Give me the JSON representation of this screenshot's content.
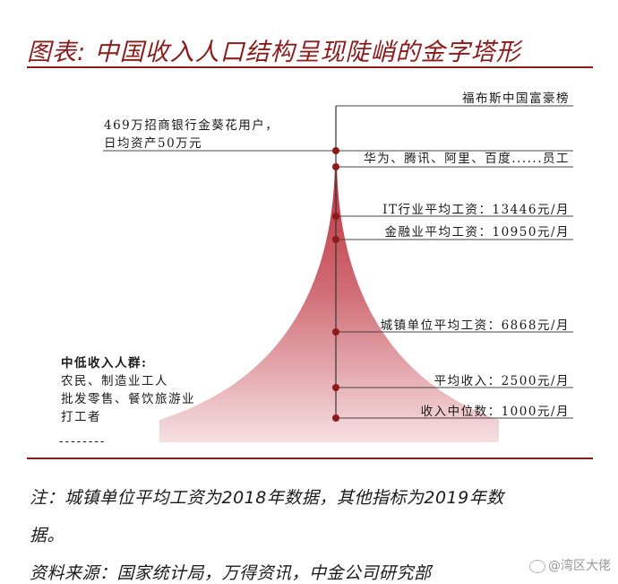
{
  "title": "图表: 中国收入人口结构呈现陡峭的金字塔形",
  "left_labels": {
    "top_line1": "469万招商银行金葵花用户，",
    "top_line2": "日均资产50万元",
    "low_title": "中低收入人群:",
    "low_line1": "农民、制造业工人",
    "low_line2": "批发零售、餐饮旅游业",
    "low_line3": "打工者",
    "dashes": "--------"
  },
  "levels": [
    {
      "label": "福布斯中国富豪榜"
    },
    {
      "label": "华为、腾讯、阿里、百度......员工"
    },
    {
      "label": "IT行业平均工资：13446元/月"
    },
    {
      "label": "金融业平均工资：10950元/月"
    },
    {
      "label": "城镇单位平均工资：6868元/月"
    },
    {
      "label": "平均收入：2500元/月"
    },
    {
      "label": "收入中位数：1000元/月"
    }
  ],
  "notes": {
    "line1": "注：城镇单位平均工资为2018年数据，其他指标为2019年数",
    "line2": "据。",
    "source": "资料来源：国家统计局，万得资讯，中金公司研究部"
  },
  "watermark": "@湾区大佬",
  "colors": {
    "accent": "#8c1b1b",
    "pyramid_top": "#b8323c",
    "pyramid_bottom": "#f6dfe2"
  }
}
